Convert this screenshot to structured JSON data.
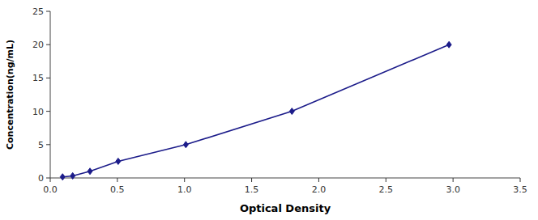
{
  "chart_data": {
    "type": "line",
    "x": [
      0.092,
      0.167,
      0.296,
      0.506,
      1.01,
      1.8,
      2.97
    ],
    "values": [
      0.156,
      0.313,
      1.0,
      2.5,
      5.0,
      10.0,
      20.0
    ],
    "color": "#1c1c8a",
    "marker": "diamond",
    "line_style": "solid",
    "xlabel": "Optical Density",
    "ylabel": "Concentration(ng/mL)",
    "xlim": [
      0,
      3.5
    ],
    "ylim": [
      0,
      25
    ],
    "xticks": [
      {
        "value": 0,
        "label": "0.0"
      },
      0.5,
      {
        "value": 1.0,
        "label": "1.0"
      },
      1.5,
      {
        "value": 2.0,
        "label": "2.0"
      },
      2.5,
      {
        "value": 3.0,
        "label": "3.0"
      },
      3.5
    ],
    "yticks": [
      0,
      5,
      10,
      15,
      20,
      25
    ],
    "grid": false
  }
}
